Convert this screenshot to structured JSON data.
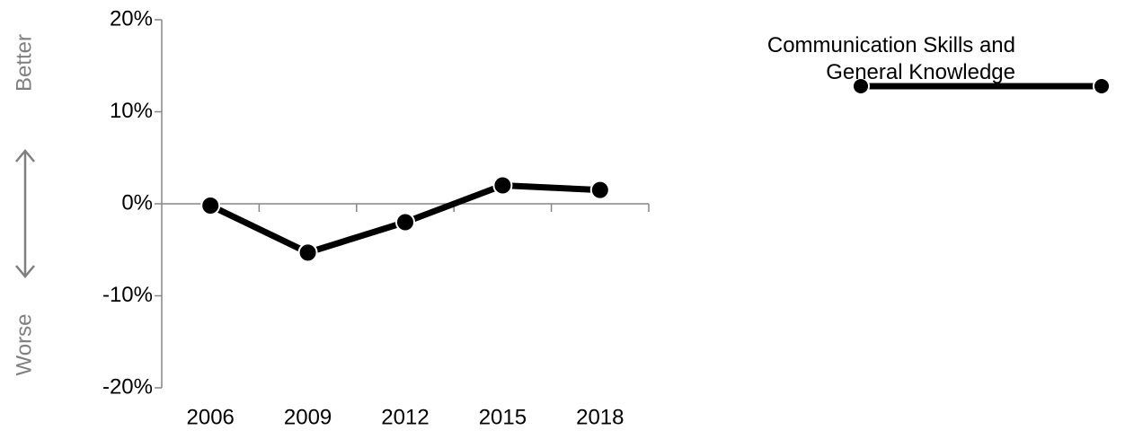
{
  "chart_data": {
    "type": "line",
    "categories": [
      "2006",
      "2009",
      "2012",
      "2015",
      "2018"
    ],
    "series": [
      {
        "name": "Communication Skills and General Knowledge",
        "color": "#000000",
        "values": [
          -0.2,
          -5.3,
          -2.0,
          2.0,
          1.5
        ]
      }
    ],
    "ylim": [
      -20,
      20
    ],
    "yticks": [
      {
        "value": -20,
        "label": "-20%"
      },
      {
        "value": -10,
        "label": "-10%"
      },
      {
        "value": 0,
        "label": "0%"
      },
      {
        "value": 10,
        "label": "10%"
      },
      {
        "value": 20,
        "label": "20%"
      }
    ],
    "annotations": [
      "Better",
      "Worse"
    ],
    "legend": "top-right"
  }
}
